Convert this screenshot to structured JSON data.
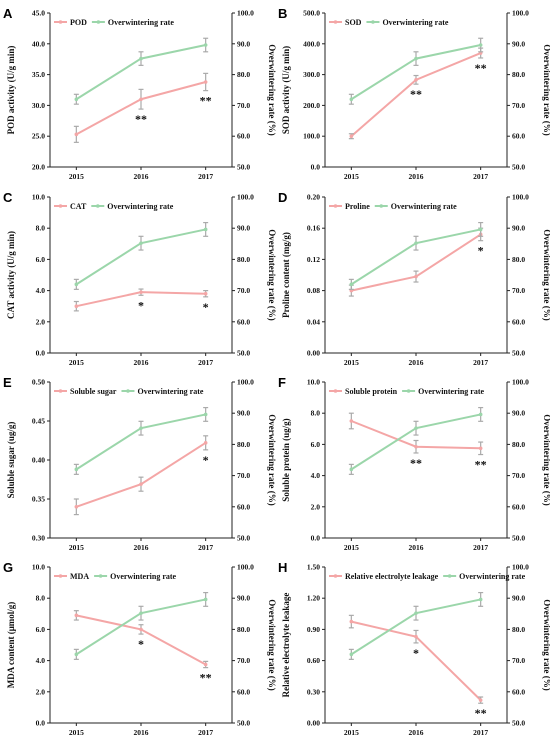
{
  "colors": {
    "primary": "#f4a6a6",
    "rate": "#9bd6aa",
    "error_bar": "#aaaaaa"
  },
  "chart_data": [
    {
      "type": "line",
      "letter": "A",
      "categories": [
        "2015",
        "2016",
        "2017"
      ],
      "ylabel": "POD activity (U/g min)",
      "ylabel2": "Overwintering rate (%)",
      "ylim": [
        20,
        45
      ],
      "yticks": [
        "20.0",
        "25.0",
        "30.0",
        "35.0",
        "40.0",
        "45.0"
      ],
      "ylim2": [
        50,
        100
      ],
      "yticks2": [
        "50.0",
        "60.0",
        "70.0",
        "80.0",
        "90.0",
        "100.0"
      ],
      "series": [
        {
          "name": "POD",
          "axis": "left",
          "values": [
            25.3,
            31.0,
            33.8
          ],
          "errors": [
            1.3,
            1.6,
            1.4
          ]
        },
        {
          "name": "Overwintering rate",
          "axis": "right",
          "values": [
            72.0,
            85.2,
            89.6
          ],
          "errors": [
            1.6,
            2.2,
            2.2
          ]
        }
      ],
      "annotations": [
        {
          "x": "2016",
          "text": "**"
        },
        {
          "x": "2017",
          "text": "**"
        }
      ]
    },
    {
      "type": "line",
      "letter": "B",
      "categories": [
        "2015",
        "2016",
        "2017"
      ],
      "ylabel": "SOD activity (U/g min)",
      "ylabel2": "Overwintering rate (%)",
      "ylim": [
        0,
        500
      ],
      "yticks": [
        "0.0",
        "100.0",
        "200.0",
        "300.0",
        "400.0",
        "500.0"
      ],
      "ylim2": [
        50,
        100
      ],
      "yticks2": [
        "50.0",
        "60.0",
        "70.0",
        "80.0",
        "90.0",
        "100.0"
      ],
      "series": [
        {
          "name": "SOD",
          "axis": "left",
          "values": [
            100,
            283,
            370
          ],
          "errors": [
            8,
            14,
            16
          ]
        },
        {
          "name": "Overwintering rate",
          "axis": "right",
          "values": [
            72.0,
            85.2,
            89.6
          ],
          "errors": [
            1.6,
            2.2,
            2.2
          ]
        }
      ],
      "annotations": [
        {
          "x": "2016",
          "text": "**"
        },
        {
          "x": "2017",
          "text": "**"
        }
      ]
    },
    {
      "type": "line",
      "letter": "C",
      "categories": [
        "2015",
        "2016",
        "2017"
      ],
      "ylabel": "CAT activity (U/g min)",
      "ylabel2": "Overwintering rate (%)",
      "ylim": [
        0,
        10
      ],
      "yticks": [
        "0.0",
        "2.0",
        "4.0",
        "6.0",
        "8.0",
        "10.0"
      ],
      "ylim2": [
        50,
        100
      ],
      "yticks2": [
        "50.0",
        "60.0",
        "70.0",
        "80.0",
        "90.0",
        "100.0"
      ],
      "series": [
        {
          "name": "CAT",
          "axis": "left",
          "values": [
            3.0,
            3.9,
            3.8
          ],
          "errors": [
            0.3,
            0.2,
            0.2
          ]
        },
        {
          "name": "Overwintering rate",
          "axis": "right",
          "values": [
            72.0,
            85.2,
            89.6
          ],
          "errors": [
            1.6,
            2.2,
            2.2
          ]
        }
      ],
      "annotations": [
        {
          "x": "2016",
          "text": "*"
        },
        {
          "x": "2017",
          "text": "*"
        }
      ]
    },
    {
      "type": "line",
      "letter": "D",
      "categories": [
        "2015",
        "2016",
        "2017"
      ],
      "ylabel": "Proline content (mg/g)",
      "ylabel2": "Overwintering rate (%)",
      "ylim": [
        0,
        0.2
      ],
      "yticks": [
        "0.00",
        "0.04",
        "0.08",
        "0.12",
        "0.16",
        "0.20"
      ],
      "ylim2": [
        50,
        100
      ],
      "yticks2": [
        "50.0",
        "60.0",
        "70.0",
        "80.0",
        "90.0",
        "100.0"
      ],
      "series": [
        {
          "name": "Proline",
          "axis": "left",
          "values": [
            0.08,
            0.098,
            0.152
          ],
          "errors": [
            0.007,
            0.007,
            0.008
          ]
        },
        {
          "name": "Overwintering rate",
          "axis": "right",
          "values": [
            72.0,
            85.2,
            89.6
          ],
          "errors": [
            1.6,
            2.2,
            2.2
          ]
        }
      ],
      "annotations": [
        {
          "x": "2017",
          "text": "*"
        }
      ]
    },
    {
      "type": "line",
      "letter": "E",
      "categories": [
        "2015",
        "2016",
        "2017"
      ],
      "ylabel": "Soluble sugar (ug/g)",
      "ylabel2": "Overwintering rate (%)",
      "ylim": [
        0.3,
        0.5
      ],
      "yticks": [
        "0.30",
        "0.35",
        "0.40",
        "0.45",
        "0.50"
      ],
      "ylim2": [
        50,
        100
      ],
      "yticks2": [
        "50.0",
        "60.0",
        "70.0",
        "80.0",
        "90.0",
        "100.0"
      ],
      "series": [
        {
          "name": "Soluble sugar",
          "axis": "left",
          "values": [
            0.34,
            0.369,
            0.422
          ],
          "errors": [
            0.01,
            0.009,
            0.009
          ]
        },
        {
          "name": "Overwintering rate",
          "axis": "right",
          "values": [
            72.0,
            85.2,
            89.6
          ],
          "errors": [
            1.6,
            2.2,
            2.2
          ]
        }
      ],
      "annotations": [
        {
          "x": "2017",
          "text": "*"
        }
      ]
    },
    {
      "type": "line",
      "letter": "F",
      "categories": [
        "2015",
        "2016",
        "2017"
      ],
      "ylabel": "Soluble protein (ug/g)",
      "ylabel2": "Overwintering rate (%)",
      "ylim": [
        0,
        10
      ],
      "yticks": [
        "0.0",
        "2.0",
        "4.0",
        "6.0",
        "8.0",
        "10.0"
      ],
      "ylim2": [
        50,
        100
      ],
      "yticks2": [
        "50.0",
        "60.0",
        "70.0",
        "80.0",
        "90.0",
        "100.0"
      ],
      "series": [
        {
          "name": "Soluble protein",
          "axis": "left",
          "values": [
            7.5,
            5.85,
            5.75
          ],
          "errors": [
            0.5,
            0.4,
            0.4
          ]
        },
        {
          "name": "Overwintering rate",
          "axis": "right",
          "values": [
            72.0,
            85.2,
            89.6
          ],
          "errors": [
            1.6,
            2.2,
            2.2
          ]
        }
      ],
      "annotations": [
        {
          "x": "2016",
          "text": "**"
        },
        {
          "x": "2017",
          "text": "**"
        }
      ]
    },
    {
      "type": "line",
      "letter": "G",
      "categories": [
        "2015",
        "2016",
        "2017"
      ],
      "ylabel": "MDA content (μmol/g)",
      "ylabel2": "Overwintering rate (%)",
      "ylim": [
        0,
        10
      ],
      "yticks": [
        "0.0",
        "2.0",
        "4.0",
        "6.0",
        "8.0",
        "10.0"
      ],
      "ylim2": [
        50,
        100
      ],
      "yticks2": [
        "50.0",
        "60.0",
        "70.0",
        "80.0",
        "90.0",
        "100.0"
      ],
      "series": [
        {
          "name": "MDA",
          "axis": "left",
          "values": [
            6.9,
            6.0,
            3.75
          ],
          "errors": [
            0.3,
            0.3,
            0.2
          ]
        },
        {
          "name": "Overwintering rate",
          "axis": "right",
          "values": [
            72.0,
            85.2,
            89.6
          ],
          "errors": [
            1.6,
            2.2,
            2.2
          ]
        }
      ],
      "annotations": [
        {
          "x": "2016",
          "text": "*"
        },
        {
          "x": "2017",
          "text": "**"
        }
      ]
    },
    {
      "type": "line",
      "letter": "H",
      "categories": [
        "2015",
        "2016",
        "2017"
      ],
      "ylabel": "Relative electrolyte leakage",
      "ylabel2": "Overwintering rate (%)",
      "ylim": [
        0,
        1.5
      ],
      "yticks": [
        "0.00",
        "0.30",
        "0.60",
        "0.90",
        "1.20",
        "1.50"
      ],
      "ylim2": [
        50,
        100
      ],
      "yticks2": [
        "50.0",
        "60.0",
        "70.0",
        "80.0",
        "90.0",
        "100.0"
      ],
      "series": [
        {
          "name": "Relative electrolyte leakage",
          "axis": "left",
          "values": [
            0.975,
            0.83,
            0.22
          ],
          "errors": [
            0.06,
            0.06,
            0.03
          ]
        },
        {
          "name": "Overwintering rate",
          "axis": "right",
          "values": [
            72.0,
            85.2,
            89.6
          ],
          "errors": [
            1.6,
            2.2,
            2.2
          ]
        }
      ],
      "annotations": [
        {
          "x": "2016",
          "text": "*"
        },
        {
          "x": "2017",
          "text": "**"
        }
      ]
    }
  ]
}
